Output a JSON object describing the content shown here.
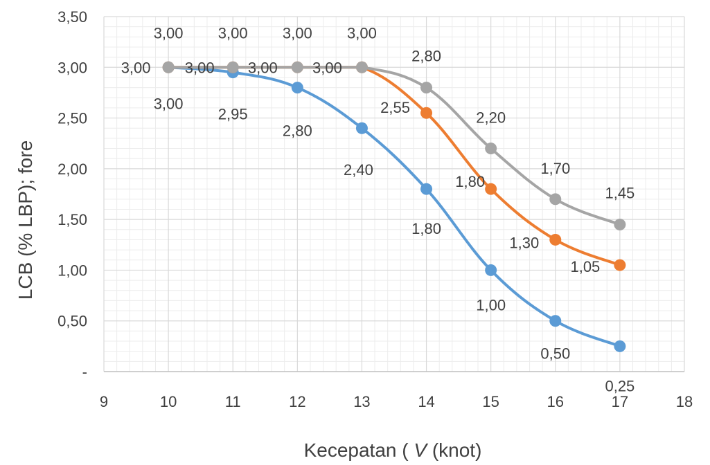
{
  "chart_data": {
    "type": "line",
    "title": "",
    "xlabel_prefix": "Kecepatan ( ",
    "xlabel_var": "V",
    "xlabel_suffix": " (knot)",
    "ylabel": "LCB (% LBP); fore",
    "xlim": [
      9,
      18
    ],
    "ylim": [
      0,
      3.5
    ],
    "x_ticks": [
      "9",
      "10",
      "11",
      "12",
      "13",
      "14",
      "15",
      "16",
      "17",
      "18"
    ],
    "y_ticks": [
      "-",
      "0,50",
      "1,00",
      "1,50",
      "2,00",
      "2,50",
      "3,00",
      "3,50"
    ],
    "grid": true,
    "x": [
      10,
      11,
      12,
      13,
      14,
      15,
      16,
      17
    ],
    "series": [
      {
        "color": "#5b9bd5",
        "values": [
          3.0,
          2.95,
          2.8,
          2.4,
          1.8,
          1.0,
          0.5,
          0.25
        ],
        "labels": [
          "3,00",
          "2,95",
          "2,80",
          "2,40",
          "1,80",
          "1,00",
          "0,50",
          "0,25"
        ]
      },
      {
        "color": "#ed7d31",
        "values": [
          3.0,
          3.0,
          3.0,
          3.0,
          2.55,
          1.8,
          1.3,
          1.05
        ],
        "labels": [
          "3,00",
          "3,00",
          "3,00",
          "3,00",
          "2,55",
          "1,80",
          "1,30",
          "1,05"
        ]
      },
      {
        "color": "#a5a5a5",
        "values": [
          3.0,
          3.0,
          3.0,
          3.0,
          2.8,
          2.2,
          1.7,
          1.45
        ],
        "labels": [
          "3,00",
          "3,00",
          "3,00",
          "3,00",
          "2,80",
          "2,20",
          "1,70",
          "1,45"
        ]
      }
    ]
  }
}
